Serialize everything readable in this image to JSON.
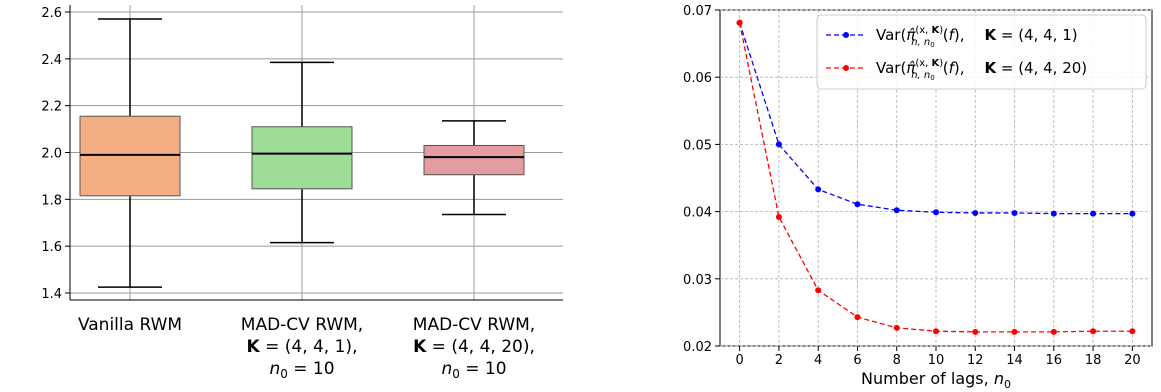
{
  "chart_data": [
    {
      "type": "box",
      "title": "",
      "xlabel": "",
      "ylabel": "",
      "ylim": [
        1.37,
        2.63
      ],
      "yticks": [
        "1.4",
        "1.6",
        "1.8",
        "2.0",
        "2.2",
        "2.4",
        "2.6"
      ],
      "grid": true,
      "categories": [
        [
          "Vanilla RWM"
        ],
        [
          "MAD-CV RWM,",
          "K = (4, 4, 1),",
          "n0 = 10"
        ],
        [
          "MAD-CV RWM,",
          "K = (4, 4, 20),",
          "n0 = 10"
        ]
      ],
      "boxes": [
        {
          "whisker_low": 1.425,
          "q1": 1.815,
          "median": 1.99,
          "q3": 2.155,
          "whisker_high": 2.57,
          "color": "#F4AE84"
        },
        {
          "whisker_low": 1.615,
          "q1": 1.845,
          "median": 1.995,
          "q3": 2.11,
          "whisker_high": 2.385,
          "color": "#9EDC97"
        },
        {
          "whisker_low": 1.735,
          "q1": 1.905,
          "median": 1.98,
          "q3": 2.03,
          "whisker_high": 2.135,
          "color": "#E39C9F"
        }
      ]
    },
    {
      "type": "line",
      "title": "",
      "xlabel": "Number of lags, n0",
      "ylabel": "",
      "xlim": [
        -1,
        21
      ],
      "ylim": [
        0.02,
        0.07
      ],
      "xticks": [
        "0",
        "2",
        "4",
        "6",
        "8",
        "10",
        "12",
        "14",
        "16",
        "18",
        "20"
      ],
      "yticks": [
        "0.02",
        "0.03",
        "0.04",
        "0.05",
        "0.06",
        "0.07"
      ],
      "grid": true,
      "legend_position": "top-right",
      "x": [
        0,
        2,
        4,
        6,
        8,
        10,
        12,
        14,
        16,
        18,
        20
      ],
      "series": [
        {
          "name": "Var(π̂n,n0(x,K)(f)),   K = (4, 4, 1)",
          "color": "#0000FF",
          "values": [
            0.0681,
            0.05,
            0.0433,
            0.0411,
            0.0402,
            0.0399,
            0.0398,
            0.0398,
            0.0397,
            0.0397,
            0.0397
          ]
        },
        {
          "name": "Var(π̂n,n0(x,K)(f)),   K = (4, 4, 20)",
          "color": "#FF0000",
          "values": [
            0.0681,
            0.0392,
            0.0283,
            0.0243,
            0.0227,
            0.0222,
            0.0221,
            0.0221,
            0.0221,
            0.0222,
            0.0222
          ]
        }
      ]
    }
  ]
}
